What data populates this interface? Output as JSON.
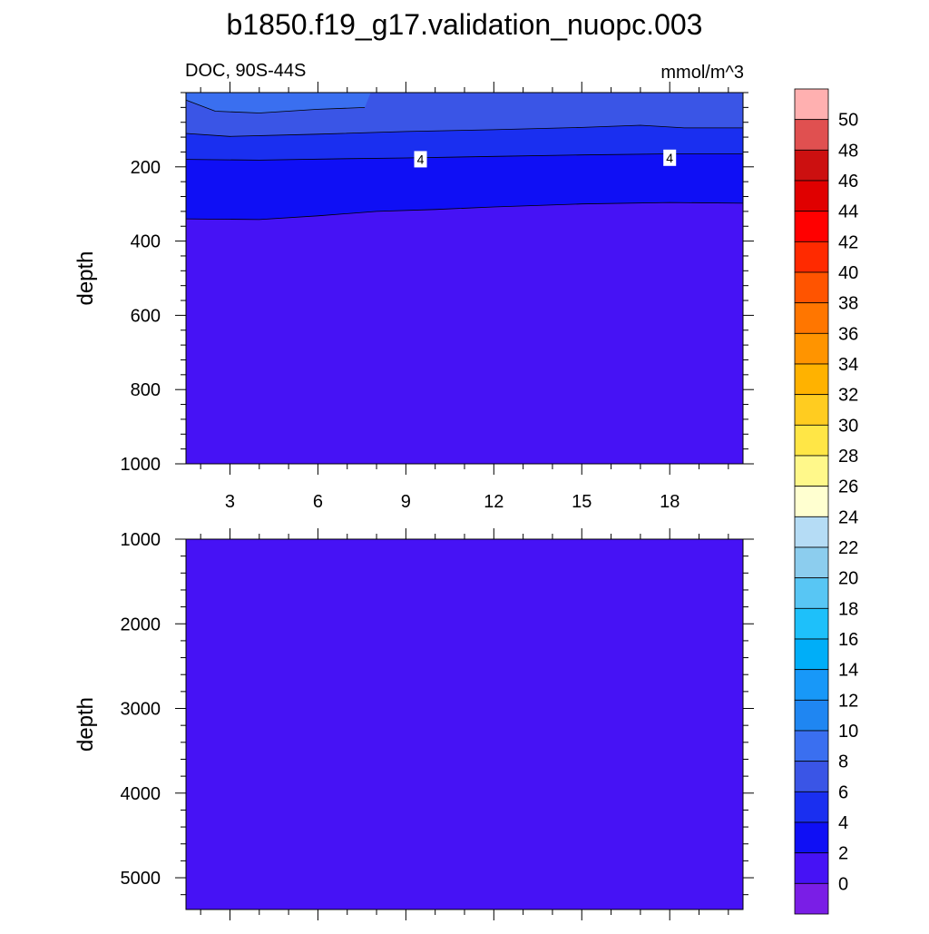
{
  "chart_data": {
    "type": "contour",
    "title": "b1850.f19_g17.validation_nuopc.003",
    "left_subtitle": "DOC, 90S-44S",
    "right_subtitle": "mmol/m^3",
    "xticks": [
      3,
      6,
      9,
      12,
      15,
      18
    ],
    "xlim": [
      1.5,
      20.5
    ],
    "panels": [
      {
        "name": "upper",
        "ylabel": "depth",
        "ylim": [
          0,
          1000
        ],
        "yticks": [
          200,
          400,
          600,
          800,
          1000
        ],
        "contour_labels": [
          {
            "text": "4",
            "x": 9.5,
            "y": 182
          },
          {
            "text": "4",
            "x": 18.0,
            "y": 178
          }
        ],
        "filled_levels": [
          {
            "level_range": [
              8,
              10
            ],
            "color": "#3a6ff0",
            "top": [
              [
                1.5,
                20
              ],
              [
                2.5,
                50
              ],
              [
                4,
                55
              ],
              [
                6,
                45
              ],
              [
                7.6,
                40
              ],
              [
                7.8,
                0
              ],
              [
                1.5,
                0
              ]
            ],
            "boundary": [
              [
                1.5,
                20
              ],
              [
                2.5,
                50
              ],
              [
                4,
                55
              ],
              [
                6,
                45
              ],
              [
                7.6,
                40
              ]
            ]
          },
          {
            "level_range": [
              6,
              8
            ],
            "color": "#3a55e6",
            "boundary": [
              [
                1.5,
                110
              ],
              [
                3,
                118
              ],
              [
                6,
                112
              ],
              [
                9,
                105
              ],
              [
                12,
                100
              ],
              [
                15,
                94
              ],
              [
                17,
                88
              ],
              [
                18.5,
                95
              ],
              [
                20.5,
                95
              ]
            ]
          },
          {
            "level_range": [
              4,
              6
            ],
            "color": "#1a2ff0",
            "boundary": [
              [
                1.5,
                180
              ],
              [
                4,
                182
              ],
              [
                7,
                178
              ],
              [
                9,
                176
              ],
              [
                12,
                172
              ],
              [
                15,
                168
              ],
              [
                18,
                165
              ],
              [
                20.5,
                165
              ]
            ]
          },
          {
            "level_range": [
              2,
              4
            ],
            "color": "#0f0ff5",
            "boundary": [
              [
                1.5,
                340
              ],
              [
                4,
                342
              ],
              [
                6,
                332
              ],
              [
                8,
                320
              ],
              [
                10,
                315
              ],
              [
                12,
                308
              ],
              [
                15,
                300
              ],
              [
                18,
                296
              ],
              [
                20.5,
                298
              ]
            ]
          },
          {
            "level_range": [
              0,
              2
            ],
            "color": "#4612f5"
          }
        ]
      },
      {
        "name": "lower",
        "ylabel": "depth",
        "ylim": [
          1000,
          5375
        ],
        "yticks": [
          1000,
          2000,
          3000,
          4000,
          5000
        ],
        "filled_levels": [
          {
            "level_range": [
              0,
              2
            ],
            "color": "#4612f5"
          }
        ]
      }
    ],
    "colorbar": {
      "labels": [
        "0",
        "2",
        "4",
        "6",
        "8",
        "10",
        "12",
        "14",
        "16",
        "18",
        "20",
        "22",
        "24",
        "26",
        "28",
        "30",
        "32",
        "34",
        "36",
        "38",
        "40",
        "42",
        "44",
        "46",
        "48",
        "50"
      ],
      "colors": [
        "#7a1ee6",
        "#4612f5",
        "#0f0ff5",
        "#1a2ff0",
        "#3a55e6",
        "#3a6ff0",
        "#1f86f2",
        "#1898f8",
        "#00aef8",
        "#1ec0fa",
        "#58c6f4",
        "#8ccdee",
        "#b5dcf5",
        "#ffffd0",
        "#fff88a",
        "#ffe646",
        "#ffcc20",
        "#ffb200",
        "#ff9400",
        "#ff7600",
        "#ff5400",
        "#ff2a00",
        "#ff0000",
        "#e00000",
        "#cc1010",
        "#e05050",
        "#ffb0b0"
      ]
    }
  }
}
